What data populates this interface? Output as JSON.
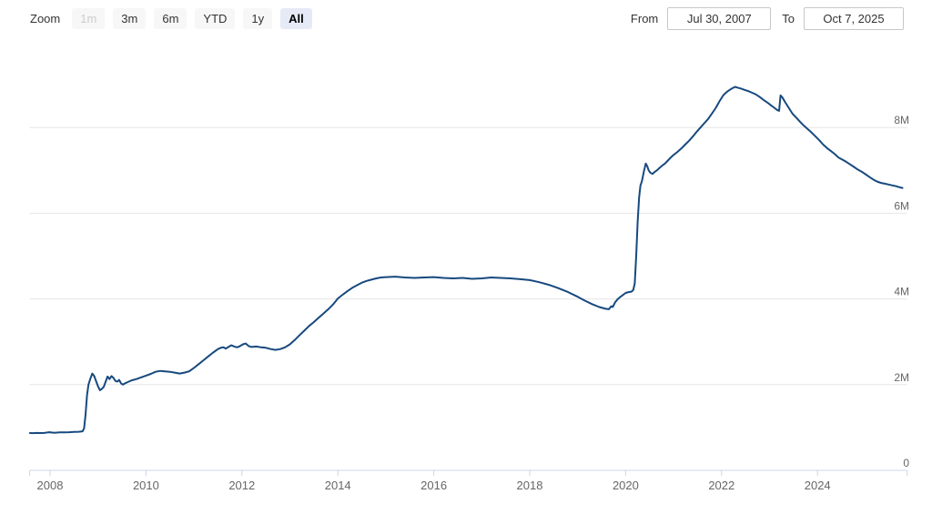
{
  "toolbar": {
    "zoom_label": "Zoom",
    "buttons": [
      {
        "label": "1m",
        "state": "disabled"
      },
      {
        "label": "3m",
        "state": "normal"
      },
      {
        "label": "6m",
        "state": "normal"
      },
      {
        "label": "YTD",
        "state": "normal"
      },
      {
        "label": "1y",
        "state": "normal"
      },
      {
        "label": "All",
        "state": "selected"
      }
    ],
    "from_label": "From",
    "from_value": "Jul 30, 2007",
    "to_label": "To",
    "to_value": "Oct 7, 2025"
  },
  "colors": {
    "background": "#ffffff",
    "line": "#17497e",
    "grid": "#e6e6e6",
    "axis": "#ccd6eb",
    "axis_label": "#666666",
    "button_bg": "#f7f7f7",
    "button_text": "#333333",
    "button_disabled_text": "#cccccc",
    "selected_bg": "#e6eaf7",
    "input_border": "#c7c7c7"
  },
  "chart_data": {
    "type": "line",
    "title": "",
    "unit": "M",
    "grid": true,
    "legend": false,
    "x_axis": {
      "ticks": [
        2008,
        2010,
        2012,
        2014,
        2016,
        2018,
        2020,
        2022,
        2024
      ],
      "range": [
        2007.575,
        2025.87
      ]
    },
    "y_axis": {
      "ticks": [
        {
          "value": 0,
          "label": "0"
        },
        {
          "value": 2,
          "label": "2M"
        },
        {
          "value": 4,
          "label": "4M"
        },
        {
          "value": 6,
          "label": "6M"
        },
        {
          "value": 8,
          "label": "8M"
        }
      ],
      "range": [
        0,
        9.8
      ]
    },
    "series": [
      {
        "name": "value",
        "color": "#17497e",
        "points": [
          [
            2007.58,
            0.87
          ],
          [
            2007.65,
            0.868
          ],
          [
            2007.72,
            0.872
          ],
          [
            2007.8,
            0.87
          ],
          [
            2007.88,
            0.873
          ],
          [
            2007.95,
            0.885
          ],
          [
            2008.0,
            0.89
          ],
          [
            2008.05,
            0.878
          ],
          [
            2008.12,
            0.88
          ],
          [
            2008.2,
            0.885
          ],
          [
            2008.3,
            0.888
          ],
          [
            2008.4,
            0.89
          ],
          [
            2008.5,
            0.895
          ],
          [
            2008.6,
            0.9
          ],
          [
            2008.68,
            0.91
          ],
          [
            2008.71,
            0.98
          ],
          [
            2008.74,
            1.3
          ],
          [
            2008.77,
            1.75
          ],
          [
            2008.8,
            2.0
          ],
          [
            2008.84,
            2.14
          ],
          [
            2008.88,
            2.26
          ],
          [
            2008.92,
            2.2
          ],
          [
            2008.96,
            2.08
          ],
          [
            2009.0,
            1.96
          ],
          [
            2009.04,
            1.87
          ],
          [
            2009.08,
            1.9
          ],
          [
            2009.12,
            1.95
          ],
          [
            2009.16,
            2.07
          ],
          [
            2009.2,
            2.19
          ],
          [
            2009.24,
            2.13
          ],
          [
            2009.28,
            2.2
          ],
          [
            2009.32,
            2.16
          ],
          [
            2009.36,
            2.09
          ],
          [
            2009.4,
            2.07
          ],
          [
            2009.44,
            2.11
          ],
          [
            2009.48,
            2.03
          ],
          [
            2009.52,
            2.0
          ],
          [
            2009.56,
            2.03
          ],
          [
            2009.62,
            2.06
          ],
          [
            2009.7,
            2.1
          ],
          [
            2009.8,
            2.13
          ],
          [
            2009.9,
            2.17
          ],
          [
            2010.0,
            2.21
          ],
          [
            2010.1,
            2.25
          ],
          [
            2010.2,
            2.3
          ],
          [
            2010.3,
            2.32
          ],
          [
            2010.4,
            2.31
          ],
          [
            2010.5,
            2.3
          ],
          [
            2010.6,
            2.28
          ],
          [
            2010.7,
            2.26
          ],
          [
            2010.8,
            2.28
          ],
          [
            2010.9,
            2.31
          ],
          [
            2011.0,
            2.39
          ],
          [
            2011.1,
            2.48
          ],
          [
            2011.2,
            2.57
          ],
          [
            2011.3,
            2.66
          ],
          [
            2011.4,
            2.75
          ],
          [
            2011.5,
            2.83
          ],
          [
            2011.56,
            2.86
          ],
          [
            2011.62,
            2.87
          ],
          [
            2011.66,
            2.84
          ],
          [
            2011.72,
            2.88
          ],
          [
            2011.78,
            2.92
          ],
          [
            2011.84,
            2.89
          ],
          [
            2011.9,
            2.87
          ],
          [
            2011.96,
            2.9
          ],
          [
            2012.02,
            2.94
          ],
          [
            2012.08,
            2.96
          ],
          [
            2012.14,
            2.9
          ],
          [
            2012.2,
            2.88
          ],
          [
            2012.3,
            2.89
          ],
          [
            2012.4,
            2.87
          ],
          [
            2012.5,
            2.86
          ],
          [
            2012.6,
            2.83
          ],
          [
            2012.7,
            2.81
          ],
          [
            2012.8,
            2.83
          ],
          [
            2012.9,
            2.87
          ],
          [
            2013.0,
            2.94
          ],
          [
            2013.1,
            3.04
          ],
          [
            2013.2,
            3.15
          ],
          [
            2013.3,
            3.26
          ],
          [
            2013.4,
            3.37
          ],
          [
            2013.5,
            3.46
          ],
          [
            2013.6,
            3.56
          ],
          [
            2013.7,
            3.66
          ],
          [
            2013.8,
            3.76
          ],
          [
            2013.9,
            3.87
          ],
          [
            2014.0,
            4.01
          ],
          [
            2014.1,
            4.1
          ],
          [
            2014.2,
            4.18
          ],
          [
            2014.3,
            4.26
          ],
          [
            2014.4,
            4.32
          ],
          [
            2014.5,
            4.38
          ],
          [
            2014.6,
            4.42
          ],
          [
            2014.7,
            4.45
          ],
          [
            2014.8,
            4.48
          ],
          [
            2014.9,
            4.5
          ],
          [
            2015.0,
            4.51
          ],
          [
            2015.2,
            4.52
          ],
          [
            2015.4,
            4.5
          ],
          [
            2015.6,
            4.49
          ],
          [
            2015.8,
            4.5
          ],
          [
            2016.0,
            4.51
          ],
          [
            2016.2,
            4.49
          ],
          [
            2016.4,
            4.48
          ],
          [
            2016.6,
            4.49
          ],
          [
            2016.8,
            4.47
          ],
          [
            2017.0,
            4.48
          ],
          [
            2017.2,
            4.5
          ],
          [
            2017.4,
            4.49
          ],
          [
            2017.6,
            4.48
          ],
          [
            2017.8,
            4.46
          ],
          [
            2018.0,
            4.44
          ],
          [
            2018.2,
            4.39
          ],
          [
            2018.4,
            4.33
          ],
          [
            2018.6,
            4.25
          ],
          [
            2018.8,
            4.16
          ],
          [
            2019.0,
            4.05
          ],
          [
            2019.15,
            3.96
          ],
          [
            2019.3,
            3.88
          ],
          [
            2019.45,
            3.81
          ],
          [
            2019.58,
            3.77
          ],
          [
            2019.65,
            3.76
          ],
          [
            2019.7,
            3.83
          ],
          [
            2019.73,
            3.81
          ],
          [
            2019.78,
            3.92
          ],
          [
            2019.83,
            3.99
          ],
          [
            2019.88,
            4.04
          ],
          [
            2019.94,
            4.09
          ],
          [
            2020.0,
            4.14
          ],
          [
            2020.06,
            4.16
          ],
          [
            2020.12,
            4.17
          ],
          [
            2020.16,
            4.21
          ],
          [
            2020.19,
            4.36
          ],
          [
            2020.22,
            5.0
          ],
          [
            2020.25,
            5.8
          ],
          [
            2020.28,
            6.37
          ],
          [
            2020.31,
            6.65
          ],
          [
            2020.34,
            6.75
          ],
          [
            2020.38,
            6.97
          ],
          [
            2020.42,
            7.16
          ],
          [
            2020.45,
            7.1
          ],
          [
            2020.48,
            7.0
          ],
          [
            2020.52,
            6.94
          ],
          [
            2020.56,
            6.92
          ],
          [
            2020.6,
            6.96
          ],
          [
            2020.65,
            7.0
          ],
          [
            2020.7,
            7.05
          ],
          [
            2020.76,
            7.11
          ],
          [
            2020.82,
            7.16
          ],
          [
            2020.88,
            7.23
          ],
          [
            2020.94,
            7.3
          ],
          [
            2021.0,
            7.36
          ],
          [
            2021.08,
            7.43
          ],
          [
            2021.16,
            7.51
          ],
          [
            2021.24,
            7.6
          ],
          [
            2021.32,
            7.69
          ],
          [
            2021.4,
            7.79
          ],
          [
            2021.48,
            7.9
          ],
          [
            2021.56,
            8.0
          ],
          [
            2021.64,
            8.1
          ],
          [
            2021.72,
            8.2
          ],
          [
            2021.8,
            8.33
          ],
          [
            2021.88,
            8.46
          ],
          [
            2021.96,
            8.62
          ],
          [
            2022.04,
            8.76
          ],
          [
            2022.12,
            8.84
          ],
          [
            2022.2,
            8.9
          ],
          [
            2022.28,
            8.95
          ],
          [
            2022.34,
            8.93
          ],
          [
            2022.4,
            8.91
          ],
          [
            2022.48,
            8.88
          ],
          [
            2022.56,
            8.85
          ],
          [
            2022.64,
            8.81
          ],
          [
            2022.72,
            8.77
          ],
          [
            2022.8,
            8.71
          ],
          [
            2022.88,
            8.64
          ],
          [
            2022.96,
            8.58
          ],
          [
            2023.04,
            8.51
          ],
          [
            2023.1,
            8.46
          ],
          [
            2023.16,
            8.41
          ],
          [
            2023.2,
            8.39
          ],
          [
            2023.23,
            8.75
          ],
          [
            2023.27,
            8.7
          ],
          [
            2023.32,
            8.6
          ],
          [
            2023.4,
            8.46
          ],
          [
            2023.48,
            8.32
          ],
          [
            2023.56,
            8.23
          ],
          [
            2023.64,
            8.13
          ],
          [
            2023.72,
            8.04
          ],
          [
            2023.8,
            7.96
          ],
          [
            2023.88,
            7.88
          ],
          [
            2023.96,
            7.79
          ],
          [
            2024.04,
            7.7
          ],
          [
            2024.12,
            7.6
          ],
          [
            2024.2,
            7.52
          ],
          [
            2024.28,
            7.45
          ],
          [
            2024.36,
            7.38
          ],
          [
            2024.44,
            7.3
          ],
          [
            2024.52,
            7.25
          ],
          [
            2024.6,
            7.2
          ],
          [
            2024.68,
            7.14
          ],
          [
            2024.76,
            7.08
          ],
          [
            2024.84,
            7.02
          ],
          [
            2024.92,
            6.97
          ],
          [
            2025.0,
            6.91
          ],
          [
            2025.08,
            6.85
          ],
          [
            2025.16,
            6.79
          ],
          [
            2025.24,
            6.74
          ],
          [
            2025.32,
            6.71
          ],
          [
            2025.4,
            6.69
          ],
          [
            2025.48,
            6.67
          ],
          [
            2025.56,
            6.65
          ],
          [
            2025.64,
            6.63
          ],
          [
            2025.7,
            6.61
          ],
          [
            2025.77,
            6.59
          ]
        ]
      }
    ]
  }
}
